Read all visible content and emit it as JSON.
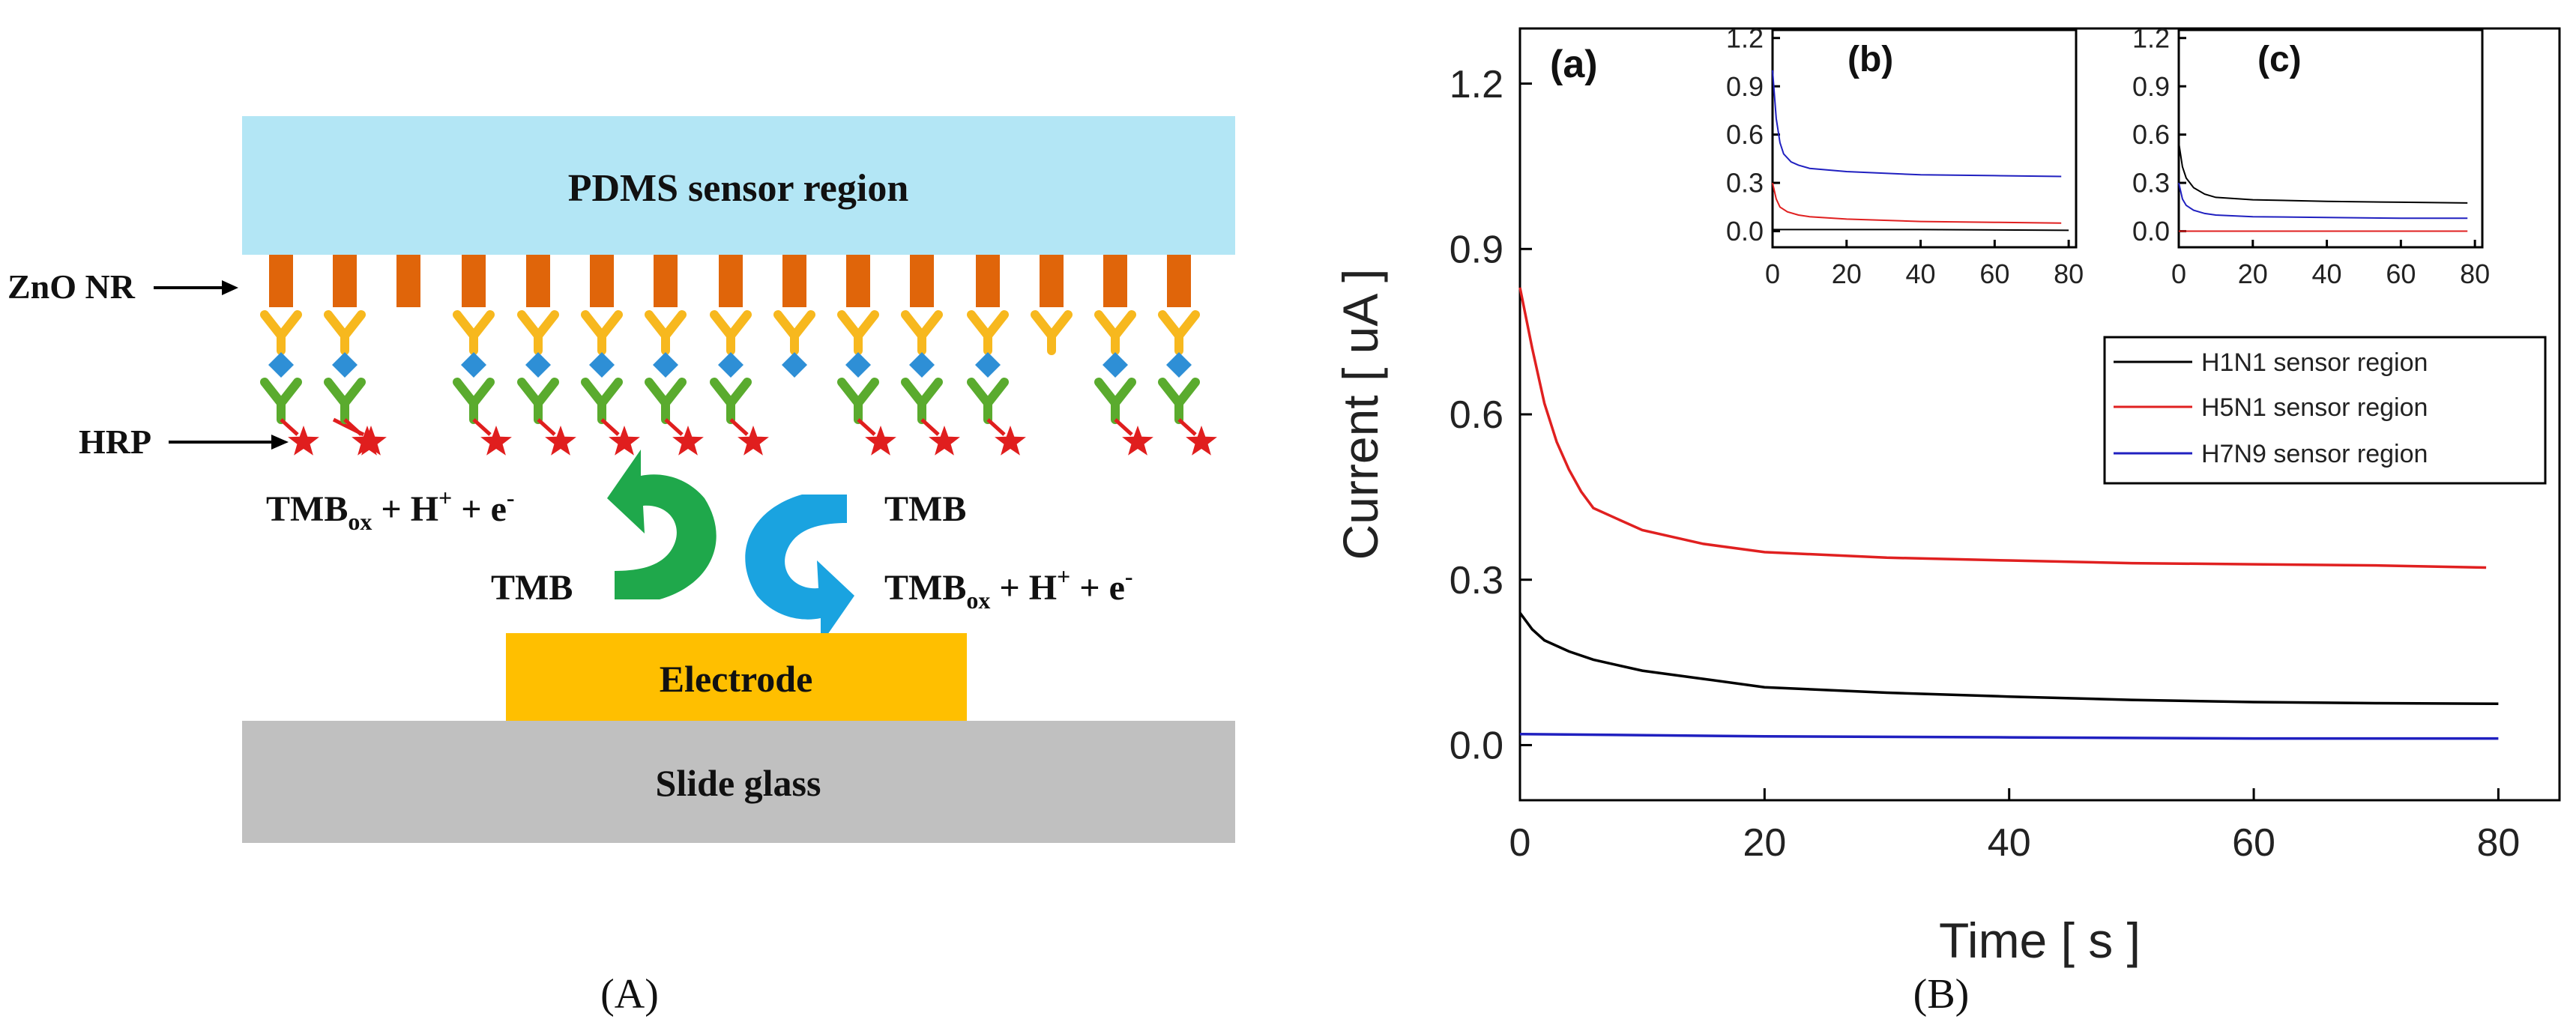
{
  "panel_a": {
    "caption": "(A)",
    "pdms_label": "PDMS sensor region",
    "zno_label": "ZnO NR",
    "hrp_label": "HRP",
    "reaction_left_top": "TMB",
    "reaction_left_top_sub": "ox",
    "reaction_left_top_tail": " + H",
    "reaction_left_top_sup1": "+",
    "reaction_left_top_tail2": " + e",
    "reaction_left_top_sup2": "-",
    "reaction_left_bottom": "TMB",
    "reaction_right_top": "TMB",
    "reaction_right_bottom": "TMB",
    "reaction_right_bottom_sub": "ox",
    "reaction_right_bottom_tail": " + H",
    "reaction_right_bottom_sup1": "+",
    "reaction_right_bottom_tail2": " + e",
    "reaction_right_bottom_sup2": "-",
    "electrode_label": "Electrode",
    "slide_label": "Slide glass",
    "colors": {
      "pdms": "#b3e6f5",
      "rod": "#e0650a",
      "antibody_yellow": "#f7b81e",
      "antibody_green": "#5aab2e",
      "antigen": "#2e8fd6",
      "hrp": "#e01e1e",
      "electrode": "#ffbf00",
      "slide": "#c0c0c0",
      "arrow_green": "#1fa84b",
      "arrow_blue": "#1aa3e0"
    }
  },
  "panel_b": {
    "caption": "(B)"
  },
  "chart_data": [
    {
      "id": "main",
      "label": "(a)",
      "type": "line",
      "xlabel": "Time [ s ]",
      "ylabel": "Current [ uA ]",
      "xlim": [
        0,
        85
      ],
      "ylim": [
        -0.1,
        1.3
      ],
      "xticks": [
        0,
        20,
        40,
        60,
        80
      ],
      "yticks": [
        0.0,
        0.3,
        0.6,
        0.9,
        1.2
      ],
      "xtick_labels": [
        "0",
        "20",
        "40",
        "60",
        "80"
      ],
      "ytick_labels": [
        "0.0",
        "0.3",
        "0.6",
        "0.9",
        "1.2"
      ],
      "legend": [
        "H1N1 sensor region",
        "H5N1 sensor region",
        "H7N9 sensor region"
      ],
      "series": [
        {
          "name": "H1N1 sensor region",
          "color": "#000000",
          "x": [
            0,
            1,
            2,
            4,
            6,
            8,
            10,
            15,
            20,
            30,
            40,
            50,
            60,
            70,
            80
          ],
          "values": [
            0.24,
            0.21,
            0.19,
            0.17,
            0.155,
            0.145,
            0.135,
            0.12,
            0.105,
            0.095,
            0.088,
            0.082,
            0.078,
            0.076,
            0.075
          ]
        },
        {
          "name": "H5N1 sensor region",
          "color": "#e02020",
          "x": [
            0,
            1,
            2,
            3,
            4,
            5,
            6,
            8,
            10,
            15,
            20,
            30,
            40,
            50,
            60,
            70,
            79
          ],
          "values": [
            0.83,
            0.72,
            0.62,
            0.55,
            0.5,
            0.46,
            0.43,
            0.41,
            0.39,
            0.365,
            0.35,
            0.34,
            0.335,
            0.33,
            0.328,
            0.326,
            0.322
          ]
        },
        {
          "name": "H7N9 sensor region",
          "color": "#2020c0",
          "x": [
            0,
            20,
            40,
            60,
            80
          ],
          "values": [
            0.02,
            0.016,
            0.014,
            0.012,
            0.012
          ]
        }
      ]
    },
    {
      "id": "inset_b",
      "label": "(b)",
      "type": "line",
      "xlim": [
        0,
        82
      ],
      "ylim": [
        -0.1,
        1.25
      ],
      "xticks": [
        0,
        20,
        40,
        60,
        80
      ],
      "yticks": [
        0.0,
        0.3,
        0.6,
        0.9,
        1.2
      ],
      "xtick_labels": [
        "0",
        "20",
        "40",
        "60",
        "80"
      ],
      "ytick_labels": [
        "0.0",
        "0.3",
        "0.6",
        "0.9",
        "1.2"
      ],
      "series": [
        {
          "name": "H1N1 sensor region",
          "color": "#000000",
          "x": [
            0,
            40,
            80
          ],
          "values": [
            0.01,
            0.01,
            0.005
          ]
        },
        {
          "name": "H5N1 sensor region",
          "color": "#e02020",
          "x": [
            0,
            1,
            2,
            4,
            7,
            10,
            20,
            40,
            60,
            78
          ],
          "values": [
            0.3,
            0.2,
            0.15,
            0.12,
            0.1,
            0.09,
            0.075,
            0.06,
            0.055,
            0.05
          ]
        },
        {
          "name": "H7N9 sensor region",
          "color": "#2020c0",
          "x": [
            0,
            1,
            2,
            3,
            5,
            7,
            10,
            20,
            40,
            60,
            78
          ],
          "values": [
            1.0,
            0.7,
            0.55,
            0.48,
            0.43,
            0.41,
            0.39,
            0.37,
            0.35,
            0.345,
            0.34
          ]
        }
      ]
    },
    {
      "id": "inset_c",
      "label": "(c)",
      "type": "line",
      "xlim": [
        0,
        82
      ],
      "ylim": [
        -0.1,
        1.25
      ],
      "xticks": [
        0,
        20,
        40,
        60,
        80
      ],
      "yticks": [
        0.0,
        0.3,
        0.6,
        0.9,
        1.2
      ],
      "xtick_labels": [
        "0",
        "20",
        "40",
        "60",
        "80"
      ],
      "ytick_labels": [
        "0.0",
        "0.3",
        "0.6",
        "0.9",
        "1.2"
      ],
      "series": [
        {
          "name": "H1N1 sensor region",
          "color": "#000000",
          "x": [
            0,
            1,
            2,
            4,
            7,
            10,
            20,
            40,
            60,
            78
          ],
          "values": [
            0.55,
            0.4,
            0.33,
            0.27,
            0.23,
            0.21,
            0.195,
            0.185,
            0.18,
            0.175
          ]
        },
        {
          "name": "H5N1 sensor region",
          "color": "#e02020",
          "x": [
            0,
            40,
            78
          ],
          "values": [
            0.0,
            0.0,
            0.0
          ]
        },
        {
          "name": "H7N9 sensor region",
          "color": "#2020c0",
          "x": [
            0,
            1,
            2,
            4,
            7,
            10,
            20,
            40,
            60,
            78
          ],
          "values": [
            0.3,
            0.2,
            0.16,
            0.13,
            0.11,
            0.1,
            0.09,
            0.085,
            0.08,
            0.08
          ]
        }
      ]
    }
  ]
}
